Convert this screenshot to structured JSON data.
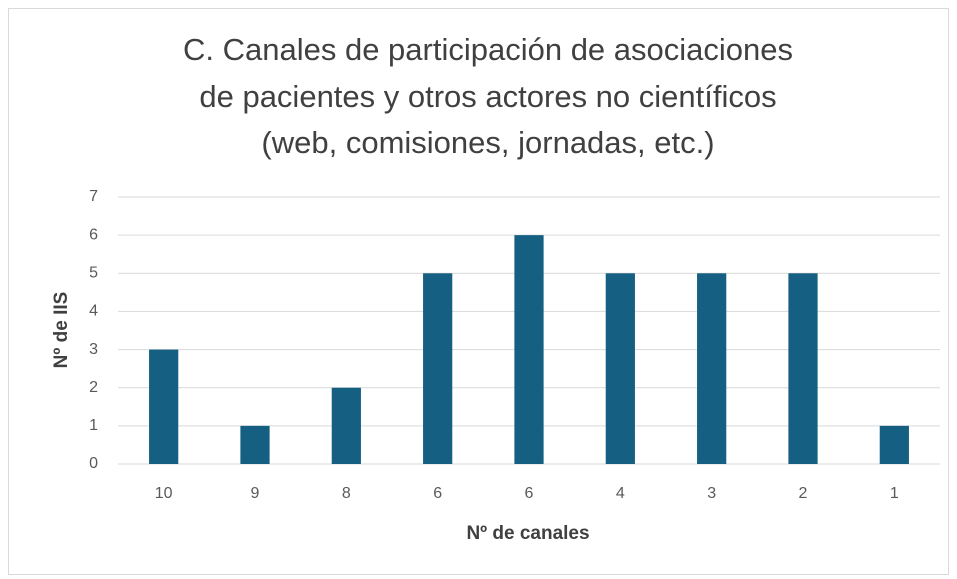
{
  "chart_data": {
    "type": "bar",
    "title": [
      "C. Canales de participación de asociaciones",
      "de pacientes y otros actores no científicos",
      "(web, comisiones, jornadas, etc.)"
    ],
    "x_label": "Nº de canales",
    "y_label": "Nº de IIS",
    "categories": [
      "10",
      "9",
      "8",
      "6",
      "6",
      "4",
      "3",
      "2",
      "1"
    ],
    "values": [
      3,
      1,
      2,
      5,
      6,
      5,
      5,
      5,
      1
    ],
    "color": "#156082",
    "ylim": [
      0,
      7
    ],
    "yticks": [
      0,
      1,
      2,
      3,
      4,
      5,
      6,
      7
    ],
    "grid": true
  }
}
